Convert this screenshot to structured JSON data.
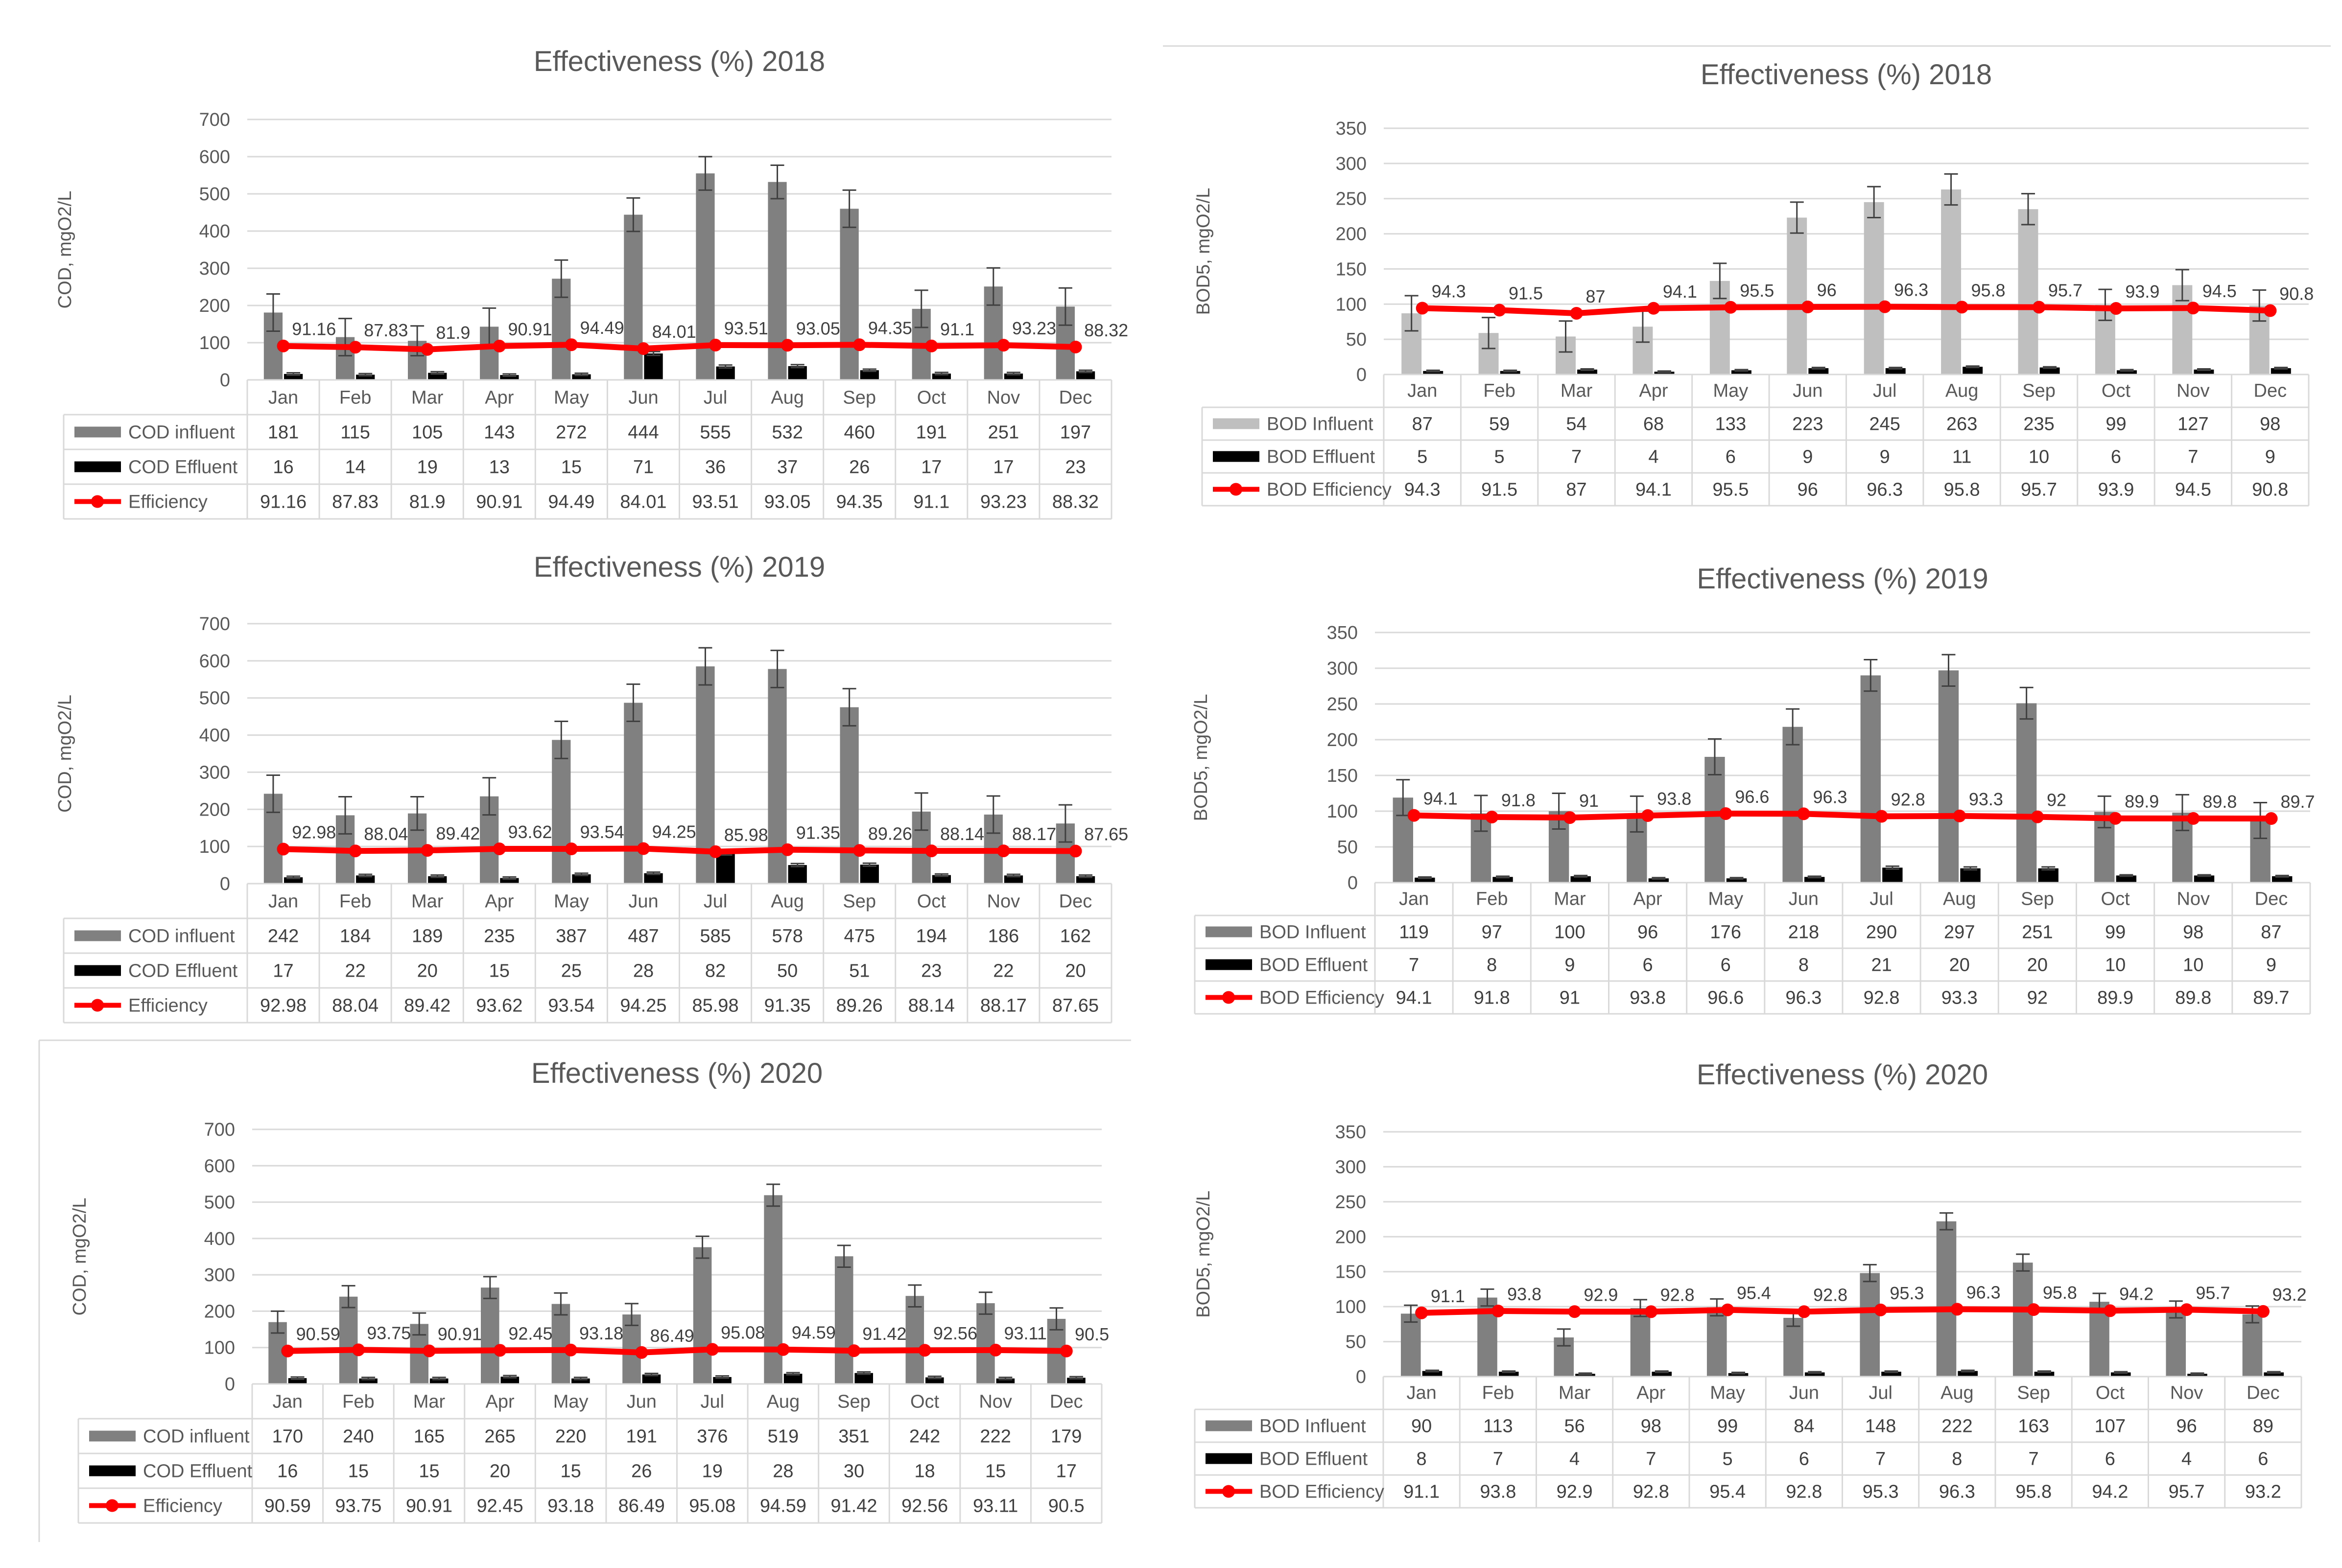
{
  "chart_data": [
    {
      "type": "bar",
      "title": "Effectiveness (%) 2018",
      "ylabel": "COD, mgO2/L",
      "ylim": [
        0,
        700
      ],
      "yticks": [
        0,
        100,
        200,
        300,
        400,
        500,
        600,
        700
      ],
      "grid": true,
      "categories": [
        "Jan",
        "Feb",
        "Mar",
        "Apr",
        "May",
        "Jun",
        "Jul",
        "Aug",
        "Sep",
        "Oct",
        "Nov",
        "Dec"
      ],
      "series": [
        {
          "name": "COD influent",
          "kind": "bar",
          "color": "#808080",
          "values": [
            181,
            115,
            105,
            143,
            272,
            444,
            555,
            532,
            460,
            191,
            251,
            197
          ],
          "errors": [
            50,
            50,
            40,
            50,
            50,
            45,
            45,
            45,
            50,
            50,
            50,
            50
          ]
        },
        {
          "name": "COD Effluent",
          "kind": "bar",
          "color": "#000000",
          "values": [
            16,
            14,
            19,
            13,
            15,
            71,
            36,
            37,
            26,
            17,
            17,
            23
          ],
          "errors": [
            3,
            3,
            3,
            3,
            3,
            5,
            4,
            4,
            3,
            3,
            3,
            3
          ]
        },
        {
          "name": "Efficiency",
          "kind": "line",
          "color": "#ff0000",
          "values": [
            91.16,
            87.83,
            81.9,
            90.91,
            94.49,
            84.01,
            93.51,
            93.05,
            94.35,
            91.1,
            93.23,
            88.32
          ],
          "labels": [
            "91.16",
            "87.83",
            "81.9",
            "90.91",
            "94.49",
            "84.01",
            "93.51",
            "93.05",
            "94.35",
            "91.1",
            "93.23",
            "88.32"
          ]
        }
      ],
      "table": [
        [
          "181",
          "115",
          "105",
          "143",
          "272",
          "444",
          "555",
          "532",
          "460",
          "191",
          "251",
          "197"
        ],
        [
          "16",
          "14",
          "19",
          "13",
          "15",
          "71",
          "36",
          "37",
          "26",
          "17",
          "17",
          "23"
        ],
        [
          "91.16",
          "87.83",
          "81.9",
          "90.91",
          "94.49",
          "84.01",
          "93.51",
          "93.05",
          "94.35",
          "91.1",
          "93.23",
          "88.32"
        ]
      ]
    },
    {
      "type": "bar",
      "title": "Effectiveness (%) 2018",
      "ylabel": "BOD5, mgO2/L",
      "ylim": [
        0,
        350
      ],
      "yticks": [
        0,
        50,
        100,
        150,
        200,
        250,
        300,
        350
      ],
      "grid": true,
      "categories": [
        "Jan",
        "Feb",
        "Mar",
        "Apr",
        "May",
        "Jun",
        "Jul",
        "Aug",
        "Sep",
        "Oct",
        "Nov",
        "Dec"
      ],
      "series": [
        {
          "name": "BOD Influent",
          "kind": "bar",
          "color": "#bfbfbf",
          "values": [
            87,
            59,
            54,
            68,
            133,
            223,
            245,
            263,
            235,
            99,
            127,
            98
          ],
          "errors": [
            25,
            22,
            22,
            22,
            25,
            22,
            22,
            22,
            22,
            22,
            22,
            22
          ]
        },
        {
          "name": "BOD Effluent",
          "kind": "bar",
          "color": "#000000",
          "values": [
            5,
            5,
            7,
            4,
            6,
            9,
            9,
            11,
            10,
            6,
            7,
            9
          ],
          "errors": [
            1,
            1,
            1,
            1,
            1,
            1,
            1,
            1,
            1,
            1,
            1,
            1
          ]
        },
        {
          "name": "BOD Efficiency",
          "kind": "line",
          "color": "#ff0000",
          "values": [
            94.3,
            91.5,
            87,
            94.1,
            95.5,
            96,
            96.3,
            95.8,
            95.7,
            93.9,
            94.5,
            90.8
          ],
          "labels": [
            "94.3",
            "91.5",
            "87",
            "94.1",
            "95.5",
            "96",
            "96.3",
            "95.8",
            "95.7",
            "93.9",
            "94.5",
            "90.8"
          ]
        }
      ],
      "table": [
        [
          "87",
          "59",
          "54",
          "68",
          "133",
          "223",
          "245",
          "263",
          "235",
          "99",
          "127",
          "98"
        ],
        [
          "5",
          "5",
          "7",
          "4",
          "6",
          "9",
          "9",
          "11",
          "10",
          "6",
          "7",
          "9"
        ],
        [
          "94.3",
          "91.5",
          "87",
          "94.1",
          "95.5",
          "96",
          "96.3",
          "95.8",
          "95.7",
          "93.9",
          "94.5",
          "90.8"
        ]
      ]
    },
    {
      "type": "bar",
      "title": "Effectiveness (%) 2019",
      "ylabel": "COD, mgO2/L",
      "ylim": [
        0,
        700
      ],
      "yticks": [
        0,
        100,
        200,
        300,
        400,
        500,
        600,
        700
      ],
      "grid": true,
      "categories": [
        "Jan",
        "Feb",
        "Mar",
        "Apr",
        "May",
        "Jun",
        "Jul",
        "Aug",
        "Sep",
        "Oct",
        "Nov",
        "Dec"
      ],
      "series": [
        {
          "name": "COD influent",
          "kind": "bar",
          "color": "#808080",
          "values": [
            242,
            184,
            189,
            235,
            387,
            487,
            585,
            578,
            475,
            194,
            186,
            162
          ],
          "errors": [
            50,
            50,
            45,
            50,
            50,
            50,
            50,
            50,
            50,
            50,
            50,
            50
          ]
        },
        {
          "name": "COD Effluent",
          "kind": "bar",
          "color": "#000000",
          "values": [
            17,
            22,
            20,
            15,
            25,
            28,
            82,
            50,
            51,
            23,
            22,
            20
          ],
          "errors": [
            3,
            3,
            3,
            3,
            3,
            3,
            5,
            4,
            4,
            3,
            3,
            3
          ]
        },
        {
          "name": "Efficiency",
          "kind": "line",
          "color": "#ff0000",
          "values": [
            92.98,
            88.04,
            89.42,
            93.62,
            93.54,
            94.25,
            85.98,
            91.35,
            89.26,
            88.14,
            88.17,
            87.65
          ],
          "labels": [
            "92.98",
            "88.04",
            "89.42",
            "93.62",
            "93.54",
            "94.25",
            "85.98",
            "91.35",
            "89.26",
            "88.14",
            "88.17",
            "87.65"
          ]
        }
      ],
      "table": [
        [
          "242",
          "184",
          "189",
          "235",
          "387",
          "487",
          "585",
          "578",
          "475",
          "194",
          "186",
          "162"
        ],
        [
          "17",
          "22",
          "20",
          "15",
          "25",
          "28",
          "82",
          "50",
          "51",
          "23",
          "22",
          "20"
        ],
        [
          "92.98",
          "88.04",
          "89.42",
          "93.62",
          "93.54",
          "94.25",
          "85.98",
          "91.35",
          "89.26",
          "88.14",
          "88.17",
          "87.65"
        ]
      ]
    },
    {
      "type": "bar",
      "title": "Effectiveness (%) 2019",
      "ylabel": "BOD5, mgO2/L",
      "ylim": [
        0,
        350
      ],
      "yticks": [
        0,
        50,
        100,
        150,
        200,
        250,
        300,
        350
      ],
      "grid": true,
      "categories": [
        "Jan",
        "Feb",
        "Mar",
        "Apr",
        "May",
        "Jun",
        "Jul",
        "Aug",
        "Sep",
        "Oct",
        "Nov",
        "Dec"
      ],
      "series": [
        {
          "name": "BOD Influent",
          "kind": "bar",
          "color": "#808080",
          "values": [
            119,
            97,
            100,
            96,
            176,
            218,
            290,
            297,
            251,
            99,
            98,
            87
          ],
          "errors": [
            25,
            25,
            25,
            25,
            25,
            25,
            22,
            22,
            22,
            22,
            25,
            25
          ]
        },
        {
          "name": "BOD Effluent",
          "kind": "bar",
          "color": "#000000",
          "values": [
            7,
            8,
            9,
            6,
            6,
            8,
            21,
            20,
            20,
            10,
            10,
            9
          ],
          "errors": [
            1,
            1,
            1,
            1,
            1,
            1,
            2,
            2,
            2,
            1,
            1,
            1
          ]
        },
        {
          "name": "BOD Efficiency",
          "kind": "line",
          "color": "#ff0000",
          "values": [
            94.1,
            91.8,
            91,
            93.8,
            96.6,
            96.3,
            92.8,
            93.3,
            92,
            89.9,
            89.8,
            89.7
          ],
          "labels": [
            "94.1",
            "91.8",
            "91",
            "93.8",
            "96.6",
            "96.3",
            "92.8",
            "93.3",
            "92",
            "89.9",
            "89.8",
            "89.7"
          ]
        }
      ],
      "table": [
        [
          "119",
          "97",
          "100",
          "96",
          "176",
          "218",
          "290",
          "297",
          "251",
          "99",
          "98",
          "87"
        ],
        [
          "7",
          "8",
          "9",
          "6",
          "6",
          "8",
          "21",
          "20",
          "20",
          "10",
          "10",
          "9"
        ],
        [
          "94.1",
          "91.8",
          "91",
          "93.8",
          "96.6",
          "96.3",
          "92.8",
          "93.3",
          "92",
          "89.9",
          "89.8",
          "89.7"
        ]
      ]
    },
    {
      "type": "bar",
      "title": "Effectiveness (%) 2020",
      "ylabel": "COD, mgO2/L",
      "ylim": [
        0,
        700
      ],
      "yticks": [
        0,
        100,
        200,
        300,
        400,
        500,
        600,
        700
      ],
      "grid": true,
      "categories": [
        "Jan",
        "Feb",
        "Mar",
        "Apr",
        "May",
        "Jun",
        "Jul",
        "Aug",
        "Sep",
        "Oct",
        "Nov",
        "Dec"
      ],
      "series": [
        {
          "name": "COD influent",
          "kind": "bar",
          "color": "#808080",
          "values": [
            170,
            240,
            165,
            265,
            220,
            191,
            376,
            519,
            351,
            242,
            222,
            179
          ],
          "errors": [
            30,
            30,
            30,
            30,
            30,
            30,
            30,
            30,
            30,
            30,
            30,
            30
          ]
        },
        {
          "name": "COD Effluent",
          "kind": "bar",
          "color": "#000000",
          "values": [
            16,
            15,
            15,
            20,
            15,
            26,
            19,
            28,
            30,
            18,
            15,
            17
          ],
          "errors": [
            3,
            3,
            3,
            3,
            3,
            3,
            3,
            3,
            3,
            3,
            3,
            3
          ]
        },
        {
          "name": "Efficiency",
          "kind": "line",
          "color": "#ff0000",
          "values": [
            90.59,
            93.75,
            90.91,
            92.45,
            93.18,
            86.49,
            95.08,
            94.59,
            91.42,
            92.56,
            93.11,
            90.5
          ],
          "labels": [
            "90.59",
            "93.75",
            "90.91",
            "92.45",
            "93.18",
            "86.49",
            "95.08",
            "94.59",
            "91.42",
            "92.56",
            "93.11",
            "90.5"
          ]
        }
      ],
      "table": [
        [
          "170",
          "240",
          "165",
          "265",
          "220",
          "191",
          "376",
          "519",
          "351",
          "242",
          "222",
          "179"
        ],
        [
          "16",
          "15",
          "15",
          "20",
          "15",
          "26",
          "19",
          "28",
          "30",
          "18",
          "15",
          "17"
        ],
        [
          "90.59",
          "93.75",
          "90.91",
          "92.45",
          "93.18",
          "86.49",
          "95.08",
          "94.59",
          "91.42",
          "92.56",
          "93.11",
          "90.5"
        ]
      ]
    },
    {
      "type": "bar",
      "title": "Effectiveness (%) 2020",
      "ylabel": "BOD5, mgO2/L",
      "ylim": [
        0,
        350
      ],
      "yticks": [
        0,
        50,
        100,
        150,
        200,
        250,
        300,
        350
      ],
      "grid": true,
      "categories": [
        "Jan",
        "Feb",
        "Mar",
        "Apr",
        "May",
        "Jun",
        "Jul",
        "Aug",
        "Sep",
        "Oct",
        "Nov",
        "Dec"
      ],
      "series": [
        {
          "name": "BOD Influent",
          "kind": "bar",
          "color": "#808080",
          "values": [
            90,
            113,
            56,
            98,
            99,
            84,
            148,
            222,
            163,
            107,
            96,
            89
          ],
          "errors": [
            12,
            12,
            12,
            12,
            12,
            12,
            12,
            12,
            12,
            12,
            12,
            12
          ]
        },
        {
          "name": "BOD Effluent",
          "kind": "bar",
          "color": "#000000",
          "values": [
            8,
            7,
            4,
            7,
            5,
            6,
            7,
            8,
            7,
            6,
            4,
            6
          ],
          "errors": [
            1,
            1,
            1,
            1,
            1,
            1,
            1,
            1,
            1,
            1,
            1,
            1
          ]
        },
        {
          "name": "BOD Efficiency",
          "kind": "line",
          "color": "#ff0000",
          "values": [
            91.1,
            93.8,
            92.9,
            92.8,
            95.4,
            92.8,
            95.3,
            96.3,
            95.8,
            94.2,
            95.7,
            93.2
          ],
          "labels": [
            "91.1",
            "93.8",
            "92.9",
            "92.8",
            "95.4",
            "92.8",
            "95.3",
            "96.3",
            "95.8",
            "94.2",
            "95.7",
            "93.2"
          ]
        }
      ],
      "table": [
        [
          "90",
          "113",
          "56",
          "98",
          "99",
          "84",
          "148",
          "222",
          "163",
          "107",
          "96",
          "89"
        ],
        [
          "8",
          "7",
          "4",
          "7",
          "5",
          "6",
          "7",
          "8",
          "7",
          "6",
          "4",
          "6"
        ],
        [
          "91.1",
          "93.8",
          "92.9",
          "92.8",
          "95.4",
          "92.8",
          "95.3",
          "96.3",
          "95.8",
          "94.2",
          "95.7",
          "93.2"
        ]
      ]
    }
  ]
}
